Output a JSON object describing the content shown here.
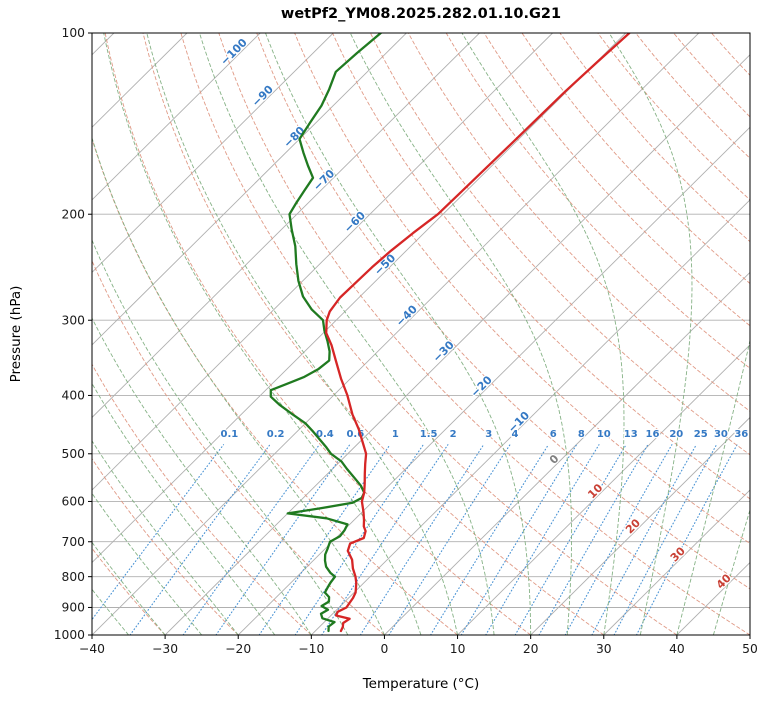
{
  "chart_data": {
    "type": "skewt_log_p",
    "title": "wetPf2_YM08.2025.282.01.10.G21",
    "xlabel": "Temperature (°C)",
    "ylabel": "Pressure (hPa)",
    "xlim": [
      -40,
      50
    ],
    "p_top": 100,
    "p_bottom": 1000,
    "skew_deg_per_decade": 83,
    "x_ticks": [
      -40,
      -30,
      -20,
      -10,
      0,
      10,
      20,
      30,
      40,
      50
    ],
    "x_tick_labels": [
      "−40",
      "−30",
      "−20",
      "−10",
      "0",
      "10",
      "20",
      "30",
      "40",
      "50"
    ],
    "y_ticks": [
      100,
      200,
      300,
      400,
      500,
      600,
      700,
      800,
      900,
      1000
    ],
    "y_tick_labels": [
      "100",
      "200",
      "300",
      "400",
      "500",
      "600",
      "700",
      "800",
      "900",
      "1000"
    ],
    "isotherms": {
      "start": -160,
      "end": 50,
      "step": 10
    },
    "isotherm_labels": [
      {
        "t": -100,
        "p": 109
      },
      {
        "t": -90,
        "p": 129
      },
      {
        "t": -80,
        "p": 151
      },
      {
        "t": -70,
        "p": 178
      },
      {
        "t": -60,
        "p": 209
      },
      {
        "t": -50,
        "p": 246
      },
      {
        "t": -40,
        "p": 299
      },
      {
        "t": -30,
        "p": 343
      },
      {
        "t": -20,
        "p": 392
      },
      {
        "t": -10,
        "p": 449
      },
      {
        "t": 0,
        "p": 518
      },
      {
        "t": 10,
        "p": 585
      },
      {
        "t": 20,
        "p": 669
      },
      {
        "t": 30,
        "p": 745
      },
      {
        "t": 40,
        "p": 826
      }
    ],
    "dry_adiabats": {
      "theta_start_c": -40,
      "theta_end_c": 200,
      "step": 10
    },
    "moist_adiabats": {
      "t0_start": -40,
      "t0_end": 45,
      "step": 5
    },
    "mixing_ratio": {
      "values": [
        0.1,
        0.2,
        0.4,
        0.6,
        1,
        1.5,
        2,
        3,
        4,
        6,
        8,
        10,
        13,
        16,
        20,
        25,
        30,
        36
      ],
      "label_pressure": 469,
      "line_top_pressure": 483
    },
    "colors": {
      "grid": "#b0b0b0",
      "isotherm": "#b0b0b0",
      "dry_adiabat": "#de9580",
      "moist_adiabat": "#7fae7f",
      "mixing_ratio": "#4a93d4",
      "mixing_label": "#3579c4",
      "isotherm_label_negative": "#3579c4",
      "isotherm_label_zero": "#808080",
      "isotherm_label_positive": "#c94136",
      "temperature": "#d62626",
      "dewpoint": "#207a20",
      "frame": "#000000"
    },
    "temperature_profile": {
      "name": "Temperature",
      "points": [
        [
          985,
          -6.5
        ],
        [
          970,
          -6.8
        ],
        [
          955,
          -7.3
        ],
        [
          940,
          -7.0
        ],
        [
          928,
          -9.3
        ],
        [
          915,
          -9.6
        ],
        [
          900,
          -9.0
        ],
        [
          885,
          -9.2
        ],
        [
          868,
          -9.4
        ],
        [
          850,
          -9.8
        ],
        [
          820,
          -11.0
        ],
        [
          800,
          -12.0
        ],
        [
          775,
          -13.5
        ],
        [
          750,
          -14.8
        ],
        [
          725,
          -16.6
        ],
        [
          705,
          -17.3
        ],
        [
          690,
          -16.2
        ],
        [
          672,
          -16.9
        ],
        [
          660,
          -17.8
        ],
        [
          645,
          -18.6
        ],
        [
          625,
          -19.8
        ],
        [
          600,
          -21.5
        ],
        [
          580,
          -22.4
        ],
        [
          560,
          -23.6
        ],
        [
          540,
          -24.9
        ],
        [
          520,
          -26.2
        ],
        [
          500,
          -27.5
        ],
        [
          478,
          -29.6
        ],
        [
          455,
          -31.9
        ],
        [
          430,
          -34.8
        ],
        [
          400,
          -38.1
        ],
        [
          375,
          -41.3
        ],
        [
          350,
          -44.5
        ],
        [
          330,
          -47.2
        ],
        [
          315,
          -49.6
        ],
        [
          300,
          -51.3
        ],
        [
          290,
          -52.1
        ],
        [
          275,
          -52.6
        ],
        [
          260,
          -52.5
        ],
        [
          245,
          -52.4
        ],
        [
          230,
          -52.1
        ],
        [
          215,
          -51.5
        ],
        [
          200,
          -50.7
        ],
        [
          185,
          -50.6
        ],
        [
          170,
          -50.5
        ],
        [
          155,
          -50.4
        ],
        [
          140,
          -50.3
        ],
        [
          125,
          -50.2
        ],
        [
          112,
          -49.9
        ],
        [
          100,
          -49.5
        ]
      ]
    },
    "dewpoint_profile": {
      "name": "Dewpoint",
      "points": [
        [
          985,
          -8.2
        ],
        [
          968,
          -8.8
        ],
        [
          952,
          -8.6
        ],
        [
          938,
          -10.8
        ],
        [
          922,
          -11.6
        ],
        [
          908,
          -11.2
        ],
        [
          895,
          -12.6
        ],
        [
          880,
          -12.2
        ],
        [
          865,
          -12.8
        ],
        [
          850,
          -14.0
        ],
        [
          835,
          -14.3
        ],
        [
          818,
          -14.6
        ],
        [
          800,
          -14.8
        ],
        [
          788,
          -16.0
        ],
        [
          770,
          -17.4
        ],
        [
          752,
          -18.4
        ],
        [
          735,
          -19.2
        ],
        [
          718,
          -19.7
        ],
        [
          700,
          -20.3
        ],
        [
          685,
          -19.7
        ],
        [
          670,
          -19.9
        ],
        [
          655,
          -20.3
        ],
        [
          640,
          -24.0
        ],
        [
          628,
          -30.0
        ],
        [
          616,
          -26.2
        ],
        [
          603,
          -22.6
        ],
        [
          592,
          -22.0
        ],
        [
          580,
          -22.4
        ],
        [
          565,
          -23.8
        ],
        [
          548,
          -25.8
        ],
        [
          530,
          -28.0
        ],
        [
          515,
          -29.8
        ],
        [
          500,
          -32.3
        ],
        [
          488,
          -33.8
        ],
        [
          472,
          -36.0
        ],
        [
          458,
          -38.0
        ],
        [
          445,
          -40.0
        ],
        [
          430,
          -43.0
        ],
        [
          415,
          -46.0
        ],
        [
          402,
          -48.4
        ],
        [
          392,
          -49.3
        ],
        [
          383,
          -48.0
        ],
        [
          373,
          -46.6
        ],
        [
          362,
          -45.7
        ],
        [
          350,
          -45.4
        ],
        [
          338,
          -46.6
        ],
        [
          325,
          -48.3
        ],
        [
          312,
          -50.2
        ],
        [
          300,
          -51.8
        ],
        [
          288,
          -54.8
        ],
        [
          274,
          -57.8
        ],
        [
          258,
          -60.6
        ],
        [
          242,
          -63.2
        ],
        [
          226,
          -65.8
        ],
        [
          212,
          -68.6
        ],
        [
          200,
          -71.0
        ],
        [
          192,
          -71.6
        ],
        [
          183,
          -72.2
        ],
        [
          174,
          -72.8
        ],
        [
          166,
          -75.2
        ],
        [
          158,
          -77.6
        ],
        [
          150,
          -80.0
        ],
        [
          141,
          -80.8
        ],
        [
          132,
          -81.6
        ],
        [
          124,
          -82.8
        ],
        [
          116,
          -84.3
        ],
        [
          108,
          -84.0
        ],
        [
          100,
          -83.5
        ]
      ]
    }
  }
}
